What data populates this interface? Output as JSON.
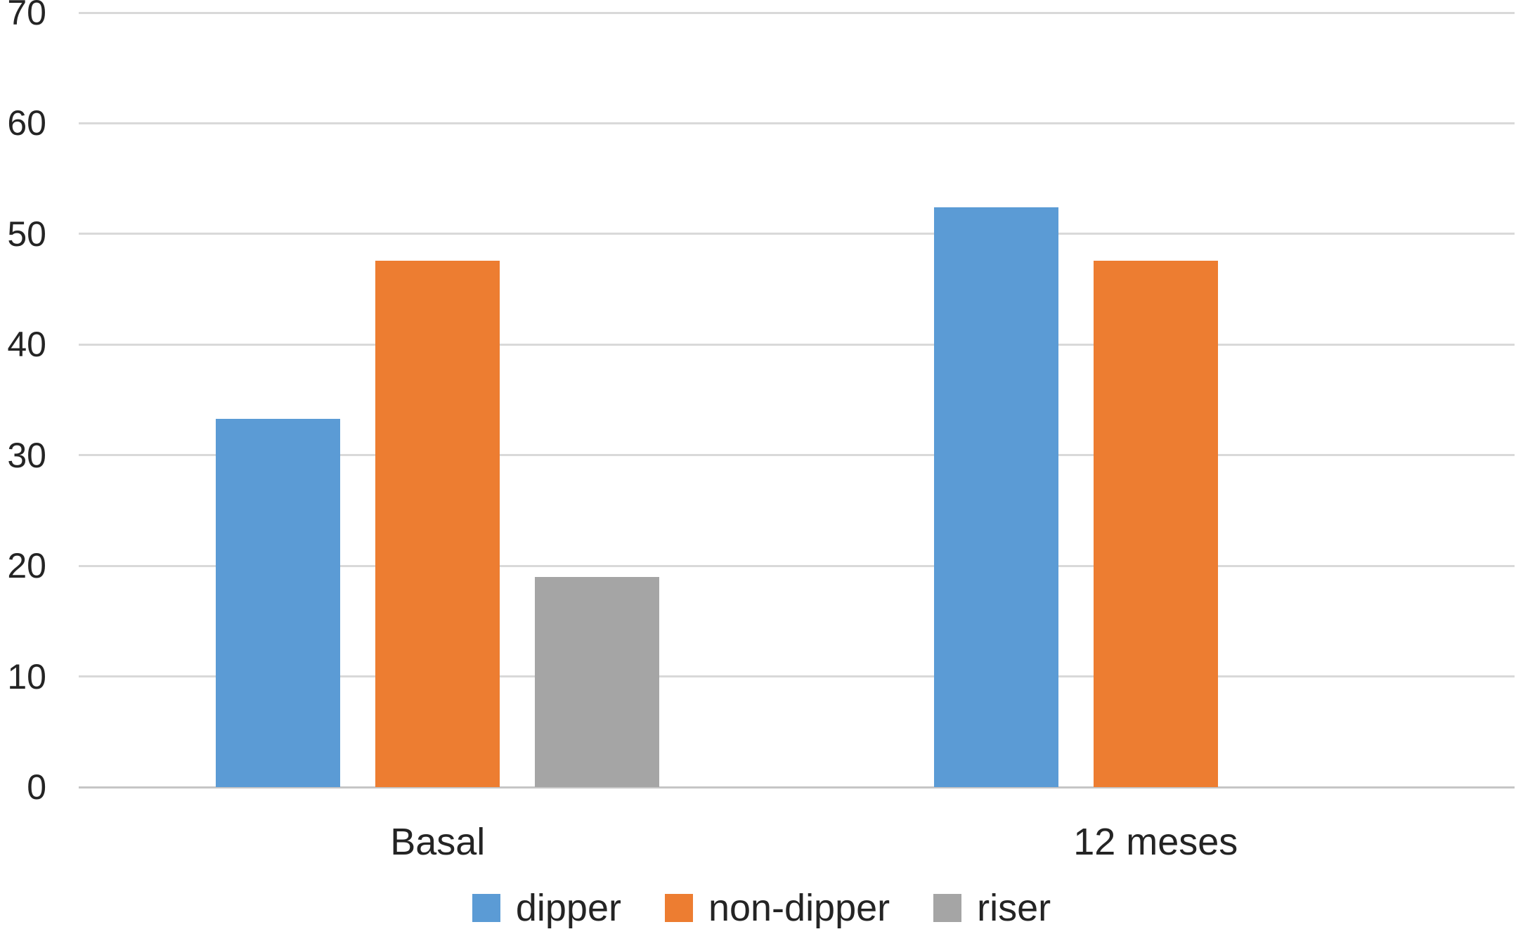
{
  "chart_data": {
    "type": "bar",
    "categories": [
      "Basal",
      "12 meses"
    ],
    "series": [
      {
        "name": "dipper",
        "color": "#5B9BD5",
        "values": [
          33.3,
          52.4
        ]
      },
      {
        "name": "non-dipper",
        "color": "#ED7D31",
        "values": [
          47.6,
          47.6
        ]
      },
      {
        "name": "riser",
        "color": "#A5A5A5",
        "values": [
          19.0,
          0
        ]
      }
    ],
    "title": "",
    "xlabel": "",
    "ylabel": "",
    "ylim": [
      0,
      70
    ],
    "yticks": [
      0,
      10,
      20,
      30,
      40,
      50,
      60,
      70
    ],
    "grid": true,
    "legend_position": "bottom"
  },
  "colors": {
    "gridline": "#D9D9D9",
    "axis_line": "#C6C6C6",
    "text": "#242424",
    "background": "#FFFFFF"
  }
}
